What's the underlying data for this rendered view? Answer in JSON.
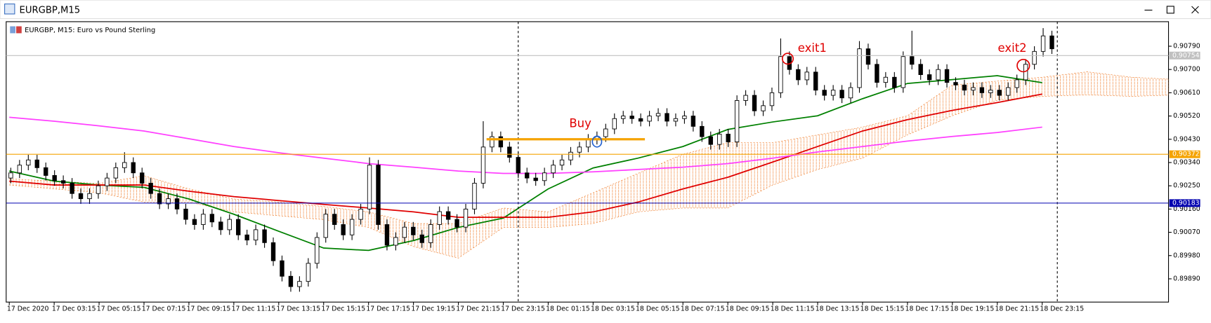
{
  "window": {
    "title": "EURGBP,M15"
  },
  "chart_data": {
    "type": "candlestick",
    "title": "EURGBP, M15:  Euro vs Pound Sterling",
    "categories": [
      "17 Dec 2020",
      "17 Dec 03:15",
      "17 Dec 05:15",
      "17 Dec 07:15",
      "17 Dec 09:15",
      "17 Dec 11:15",
      "17 Dec 13:15",
      "17 Dec 15:15",
      "17 Dec 17:15",
      "17 Dec 19:15",
      "17 Dec 21:15",
      "17 Dec 23:15",
      "18 Dec 01:15",
      "18 Dec 03:15",
      "18 Dec 05:15",
      "18 Dec 07:15",
      "18 Dec 09:15",
      "18 Dec 11:15",
      "18 Dec 13:15",
      "18 Dec 15:15",
      "18 Dec 17:15",
      "18 Dec 19:15",
      "18 Dec 21:15",
      "18 Dec 23:15",
      null,
      null,
      null
    ],
    "candles": {
      "open": [
        0.9028,
        0.903,
        0.9033,
        0.9035,
        0.9032,
        0.9029,
        0.9027,
        0.9026,
        0.9022,
        0.902,
        0.9022,
        0.9025,
        0.9028,
        0.9032,
        0.9034,
        0.903,
        0.9026,
        0.9022,
        0.9018,
        0.902,
        0.9016,
        0.9012,
        0.901,
        0.9014,
        0.9011,
        0.9008,
        0.9012,
        0.9006,
        0.9004,
        0.9008,
        0.9003,
        0.8996,
        0.899,
        0.8986,
        0.8988,
        0.8995,
        0.9005,
        0.9014,
        0.901,
        0.9006,
        0.9012,
        0.9016,
        0.9033,
        0.901,
        0.9002,
        0.9005,
        0.9009,
        0.9006,
        0.9003,
        0.901,
        0.9015,
        0.9012,
        0.9009,
        0.9016,
        0.9026,
        0.904,
        0.9044,
        0.904,
        0.9036,
        0.903,
        0.9028,
        0.9027,
        0.903,
        0.9033,
        0.9035,
        0.9038,
        0.904,
        0.9043,
        0.9044,
        0.9047,
        0.9051,
        0.9052,
        0.9051,
        0.905,
        0.9052,
        0.9053,
        0.905,
        0.9051,
        0.9052,
        0.9048,
        0.9044,
        0.9041,
        0.9045,
        0.9042,
        0.9058,
        0.906,
        0.9054,
        0.9056,
        0.9061,
        0.9075,
        0.907,
        0.9066,
        0.9069,
        0.9062,
        0.906,
        0.9062,
        0.9059,
        0.9063,
        0.9078,
        0.9072,
        0.9065,
        0.9067,
        0.9063,
        0.9075,
        0.9072,
        0.9068,
        0.9066,
        0.907,
        0.9065,
        0.9064,
        0.9062,
        0.9063,
        0.9061,
        0.9062,
        0.906,
        0.9063,
        0.9066,
        0.9072,
        0.9077,
        0.9083
      ],
      "high": [
        0.9032,
        0.9035,
        0.9037,
        0.9037,
        0.9034,
        0.9031,
        0.9029,
        0.9028,
        0.9024,
        0.9024,
        0.9027,
        0.903,
        0.9034,
        0.9038,
        0.9036,
        0.9032,
        0.9028,
        0.9024,
        0.9022,
        0.9022,
        0.9018,
        0.9014,
        0.9016,
        0.9016,
        0.9013,
        0.9014,
        0.9014,
        0.9008,
        0.901,
        0.901,
        0.9005,
        0.8998,
        0.8992,
        0.899,
        0.8997,
        0.9007,
        0.9016,
        0.9016,
        0.9012,
        0.9014,
        0.9018,
        0.9036,
        0.9035,
        0.9012,
        0.9007,
        0.9011,
        0.9011,
        0.9008,
        0.9012,
        0.9017,
        0.9017,
        0.9014,
        0.9018,
        0.9028,
        0.905,
        0.9046,
        0.9046,
        0.9042,
        0.9038,
        0.9032,
        0.903,
        0.9032,
        0.9035,
        0.9037,
        0.904,
        0.9042,
        0.9045,
        0.9046,
        0.9049,
        0.9053,
        0.9054,
        0.9054,
        0.9053,
        0.9054,
        0.9055,
        0.9055,
        0.9053,
        0.9054,
        0.9054,
        0.905,
        0.9046,
        0.9047,
        0.9047,
        0.906,
        0.9062,
        0.9062,
        0.9058,
        0.9063,
        0.9082,
        0.9077,
        0.9072,
        0.9071,
        0.9071,
        0.9064,
        0.9064,
        0.9064,
        0.9065,
        0.9081,
        0.908,
        0.9074,
        0.9069,
        0.9069,
        0.9077,
        0.9085,
        0.9074,
        0.907,
        0.9072,
        0.9072,
        0.9067,
        0.9066,
        0.9065,
        0.9065,
        0.9064,
        0.9064,
        0.9065,
        0.9068,
        0.9074,
        0.9079,
        0.9086,
        0.9085
      ],
      "low": [
        0.9026,
        0.9028,
        0.9031,
        0.903,
        0.9027,
        0.9025,
        0.9024,
        0.902,
        0.9018,
        0.9018,
        0.902,
        0.9023,
        0.9026,
        0.903,
        0.9028,
        0.9024,
        0.902,
        0.9016,
        0.9016,
        0.9014,
        0.901,
        0.9008,
        0.9008,
        0.9009,
        0.9006,
        0.9006,
        0.9004,
        0.9002,
        0.9002,
        0.9001,
        0.8994,
        0.8988,
        0.8984,
        0.8984,
        0.8986,
        0.8993,
        0.9003,
        0.9008,
        0.9004,
        0.9004,
        0.901,
        0.9014,
        0.9008,
        0.9,
        0.9,
        0.9003,
        0.9004,
        0.9001,
        0.9001,
        0.9008,
        0.901,
        0.9007,
        0.9007,
        0.9014,
        0.9024,
        0.9038,
        0.9038,
        0.9034,
        0.9028,
        0.9026,
        0.9025,
        0.9025,
        0.9028,
        0.9031,
        0.9033,
        0.9036,
        0.9038,
        0.9041,
        0.9042,
        0.9045,
        0.9049,
        0.9049,
        0.9048,
        0.9048,
        0.905,
        0.9048,
        0.9048,
        0.9049,
        0.9046,
        0.9042,
        0.9039,
        0.9039,
        0.904,
        0.904,
        0.9056,
        0.9052,
        0.9052,
        0.9054,
        0.9059,
        0.9068,
        0.9064,
        0.9064,
        0.906,
        0.9058,
        0.9058,
        0.9057,
        0.9057,
        0.9061,
        0.907,
        0.9063,
        0.9063,
        0.9061,
        0.9061,
        0.907,
        0.9066,
        0.9064,
        0.9064,
        0.9063,
        0.9062,
        0.906,
        0.906,
        0.9059,
        0.9059,
        0.9058,
        0.9058,
        0.9061,
        0.9064,
        0.907,
        0.9075,
        0.9076
      ],
      "close": [
        0.903,
        0.9033,
        0.9035,
        0.9032,
        0.9029,
        0.9027,
        0.9026,
        0.9022,
        0.902,
        0.9022,
        0.9025,
        0.9028,
        0.9032,
        0.9034,
        0.903,
        0.9026,
        0.9022,
        0.9018,
        0.902,
        0.9016,
        0.9012,
        0.901,
        0.9014,
        0.9011,
        0.9008,
        0.9012,
        0.9006,
        0.9004,
        0.9008,
        0.9003,
        0.8996,
        0.899,
        0.8986,
        0.8988,
        0.8995,
        0.9005,
        0.9014,
        0.901,
        0.9006,
        0.9012,
        0.9016,
        0.9033,
        0.901,
        0.9002,
        0.9005,
        0.9009,
        0.9006,
        0.9003,
        0.901,
        0.9015,
        0.9012,
        0.9009,
        0.9016,
        0.9026,
        0.904,
        0.9044,
        0.904,
        0.9036,
        0.903,
        0.9028,
        0.9027,
        0.903,
        0.9033,
        0.9035,
        0.9038,
        0.904,
        0.9043,
        0.9044,
        0.9047,
        0.9051,
        0.9052,
        0.9051,
        0.905,
        0.9052,
        0.9053,
        0.905,
        0.9051,
        0.9052,
        0.9048,
        0.9044,
        0.9041,
        0.9045,
        0.9042,
        0.9058,
        0.906,
        0.9054,
        0.9056,
        0.9061,
        0.9075,
        0.907,
        0.9066,
        0.9069,
        0.9062,
        0.906,
        0.9062,
        0.9059,
        0.9063,
        0.9078,
        0.9072,
        0.9065,
        0.9067,
        0.9063,
        0.9075,
        0.9072,
        0.9068,
        0.9066,
        0.907,
        0.9065,
        0.9064,
        0.9062,
        0.9063,
        0.9061,
        0.9062,
        0.906,
        0.9063,
        0.9066,
        0.9072,
        0.9077,
        0.9083,
        0.9078
      ]
    },
    "series": [
      {
        "color": "#008000",
        "values": [
          0.90307,
          0.90268,
          0.90253,
          0.90244,
          0.90199,
          0.9014,
          0.90074,
          0.90009,
          0.9,
          0.90038,
          0.90089,
          0.90125,
          0.90238,
          0.90319,
          0.90357,
          0.90402,
          0.90468,
          0.90497,
          0.90521,
          0.90587,
          0.90646,
          0.90661,
          0.90676,
          0.90649,
          null,
          null,
          null
        ]
      },
      {
        "color": "#e00000",
        "values": [
          0.90268,
          0.90253,
          0.90253,
          0.90253,
          0.90229,
          0.90208,
          0.90193,
          0.90178,
          0.90164,
          0.90149,
          0.90128,
          0.90128,
          0.90128,
          0.90149,
          0.90187,
          0.90238,
          0.90283,
          0.90342,
          0.90402,
          0.90462,
          0.90506,
          0.90542,
          0.90572,
          0.90605,
          null,
          null,
          null
        ]
      },
      {
        "color": "#ff40ff",
        "values": [
          0.90515,
          0.905,
          0.90482,
          0.90462,
          0.90432,
          0.90402,
          0.90378,
          0.90357,
          0.90336,
          0.90322,
          0.90307,
          0.90298,
          0.90298,
          0.90304,
          0.90313,
          0.90322,
          0.90336,
          0.90357,
          0.90381,
          0.90402,
          0.90423,
          0.90441,
          0.90456,
          0.90477,
          null,
          null,
          null
        ]
      }
    ],
    "cloud": {
      "color": "#f08030",
      "upper": [
        0.90277,
        0.90268,
        0.90259,
        0.90289,
        0.90238,
        0.90199,
        0.90187,
        0.9017,
        0.90149,
        0.90104,
        0.90104,
        0.90164,
        0.90149,
        0.90223,
        0.90298,
        0.90372,
        0.90417,
        0.90417,
        0.90447,
        0.90477,
        0.90521,
        0.9064,
        0.90655,
        0.9067,
        0.90691,
        0.9067,
        0.90661
      ],
      "lower": [
        0.90253,
        0.90238,
        0.90223,
        0.90187,
        0.90187,
        0.90149,
        0.90134,
        0.90119,
        0.90089,
        0.90015,
        0.8997,
        0.90089,
        0.90089,
        0.90104,
        0.90149,
        0.90164,
        0.90164,
        0.90253,
        0.90313,
        0.90357,
        0.90447,
        0.90521,
        0.90581,
        0.90596,
        0.90602,
        0.90596,
        0.90602
      ]
    },
    "levels": [
      {
        "value": 0.90754,
        "color": "#c0c0c0"
      },
      {
        "value": 0.90372,
        "color": "#f5a300"
      },
      {
        "value": 0.90183,
        "color": "#0000b0"
      }
    ],
    "buy_level": 0.9043,
    "buy_color": "#f5a300",
    "annotations": [
      "Buy",
      "exit1",
      "exit2"
    ],
    "ylim": [
      0.898,
      0.90885
    ],
    "yticks": [
      {
        "value": 0.9079,
        "label": "0.90790"
      },
      {
        "value": 0.907,
        "label": "0.90700"
      },
      {
        "value": 0.9061,
        "label": "0.90610"
      },
      {
        "value": 0.9052,
        "label": "0.90520"
      },
      {
        "value": 0.9043,
        "label": "0.90430"
      },
      {
        "value": 0.9034,
        "label": "0.90340"
      },
      {
        "value": 0.9025,
        "label": "0.90250"
      },
      {
        "value": 0.9016,
        "label": "0.90160"
      },
      {
        "value": 0.9007,
        "label": "0.90070"
      },
      {
        "value": 0.8998,
        "label": "0.89980"
      },
      {
        "value": 0.8989,
        "label": "0.89890"
      }
    ]
  }
}
